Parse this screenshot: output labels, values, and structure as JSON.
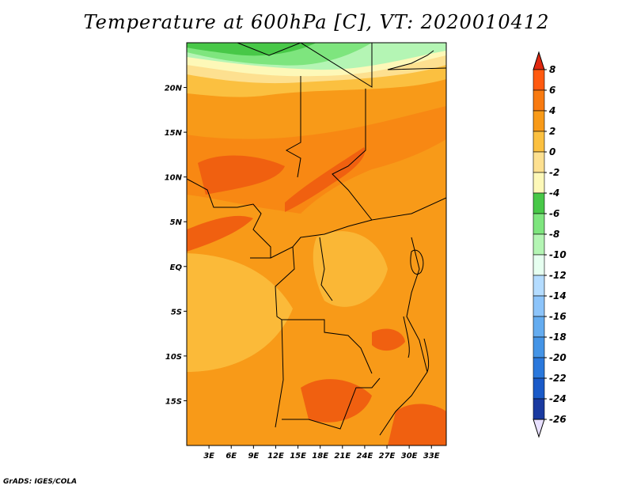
{
  "title": "Temperature at 600hPa [C], VT: 2020010412",
  "credit": "GrADS: IGES/COLA",
  "map": {
    "lon_range": [
      0,
      35
    ],
    "lat_range": [
      -20,
      25
    ],
    "lat_ticks": [
      "20N",
      "15N",
      "10N",
      "5N",
      "EQ",
      "5S",
      "10S",
      "15S"
    ],
    "lat_tick_values": [
      20,
      15,
      10,
      5,
      0,
      -5,
      -10,
      -15
    ],
    "lon_ticks": [
      "3E",
      "6E",
      "9E",
      "12E",
      "15E",
      "18E",
      "21E",
      "24E",
      "27E",
      "30E",
      "33E"
    ],
    "lon_tick_values": [
      3,
      6,
      9,
      12,
      15,
      18,
      21,
      24,
      27,
      30,
      33
    ]
  },
  "colorbar": {
    "levels": [
      "8",
      "6",
      "4",
      "2",
      "0",
      "-2",
      "-4",
      "-6",
      "-8",
      "-10",
      "-12",
      "-14",
      "-16",
      "-18",
      "-20",
      "-22",
      "-24",
      "-26"
    ],
    "colors": [
      "#ff3a10",
      "#ff5a10",
      "#f87a10",
      "#f89a18",
      "#fbc040",
      "#fde090",
      "#fdf8b8",
      "#48c848",
      "#7ee57e",
      "#b4f5b4",
      "#e6fff0",
      "#b4dcff",
      "#8cc4fa",
      "#64acf0",
      "#4494e6",
      "#2a78dc",
      "#1a5ac8",
      "#1a3aa0",
      "#0c1e78"
    ],
    "top_arrow": "#e02810",
    "bottom_arrow": "#e8e0ff"
  }
}
